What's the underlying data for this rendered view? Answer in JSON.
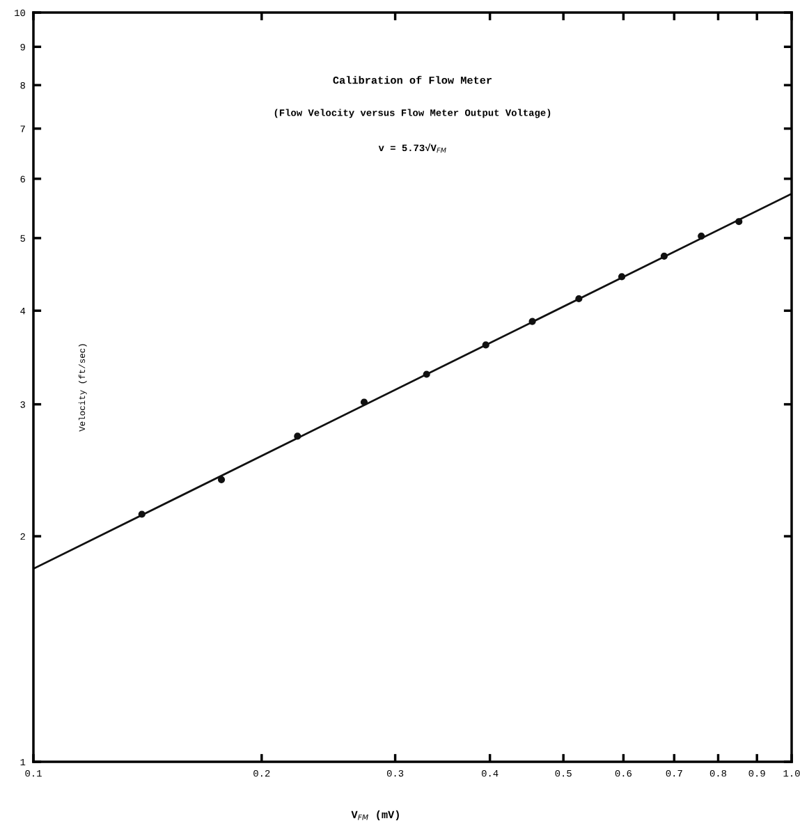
{
  "chart_data": {
    "type": "scatter",
    "title": "Calibration of Flow Meter",
    "subtitle": "(Flow Velocity versus Flow Meter Output Voltage)",
    "annotations": [
      "v = 5.73√V$_{FM}$"
    ],
    "xlabel": "V$_{FM}$ (mV)",
    "ylabel": "Velocity (ft/sec)",
    "log": "xy",
    "grid": false,
    "legend": false,
    "xlim": [
      0.1,
      1.0
    ],
    "ylim": [
      1,
      10
    ],
    "xticks": [
      0.1,
      0.2,
      0.3,
      0.4,
      0.5,
      0.6,
      0.7,
      0.8,
      0.9,
      {
        "value": 1.0,
        "label": "1.0"
      }
    ],
    "yticks": [
      1,
      2,
      3,
      4,
      5,
      6,
      7,
      8,
      9,
      10
    ],
    "series": [
      {
        "color": "#111111",
        "marker": "circle",
        "x": [
          0.139,
          0.177,
          0.223,
          0.273,
          0.33,
          0.395,
          0.455,
          0.524,
          0.597,
          0.679,
          0.76,
          0.852
        ],
        "values": [
          2.14,
          2.38,
          2.72,
          3.02,
          3.29,
          3.6,
          3.87,
          4.15,
          4.44,
          4.73,
          5.03,
          5.26
        ]
      },
      {
        "type": "line",
        "color": "#111111",
        "line_style": "solid",
        "x": [
          0.1,
          1.0
        ],
        "values": [
          1.81,
          5.73
        ]
      }
    ]
  }
}
